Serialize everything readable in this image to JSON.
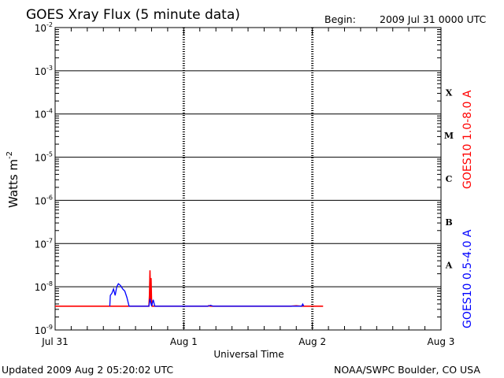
{
  "chart_data": {
    "type": "line",
    "title": "GOES Xray Flux (5 minute data)",
    "begin_label": "Begin:",
    "begin_value": "2009 Jul 31 0000 UTC",
    "xlabel": "Universal Time",
    "ylabel": "Watts m",
    "ylabel_exp": "-2",
    "x_unit": "hours since 2009 Jul 31 0000 UTC",
    "xlim": [
      0,
      72
    ],
    "x_ticks": [
      {
        "label": "Jul 31",
        "value": 0
      },
      {
        "label": "Aug 1",
        "value": 24
      },
      {
        "label": "Aug 2",
        "value": 48
      },
      {
        "label": "Aug 3",
        "value": 72
      }
    ],
    "y_scale": "log",
    "ylim_exp": [
      -9,
      -2
    ],
    "y_ticks": [
      {
        "base": "10",
        "exp": "-2",
        "value": -2
      },
      {
        "base": "10",
        "exp": "-3",
        "value": -3
      },
      {
        "base": "10",
        "exp": "-4",
        "value": -4
      },
      {
        "base": "10",
        "exp": "-5",
        "value": -5
      },
      {
        "base": "10",
        "exp": "-6",
        "value": -6
      },
      {
        "base": "10",
        "exp": "-7",
        "value": -7
      },
      {
        "base": "10",
        "exp": "-8",
        "value": -8
      },
      {
        "base": "10",
        "exp": "-9",
        "value": -9
      }
    ],
    "flare_classes": [
      {
        "label": "X",
        "value": -3.5
      },
      {
        "label": "M",
        "value": -4.5
      },
      {
        "label": "C",
        "value": -5.5
      },
      {
        "label": "B",
        "value": -6.5
      },
      {
        "label": "A",
        "value": -7.5
      }
    ],
    "series": [
      {
        "name": "GOES10 1.0-8.0 A",
        "color": "#ff0000",
        "points": [
          [
            0,
            -8.45
          ],
          [
            17.5,
            -8.45
          ],
          [
            17.6,
            -8.2
          ],
          [
            17.7,
            -7.62
          ],
          [
            17.8,
            -8.3
          ],
          [
            17.9,
            -7.8
          ],
          [
            18.0,
            -8.35
          ],
          [
            18.1,
            -8.45
          ],
          [
            28.5,
            -8.45
          ],
          [
            28.6,
            -8.44
          ],
          [
            29.0,
            -8.45
          ],
          [
            44,
            -8.45
          ],
          [
            45,
            -8.44
          ],
          [
            46,
            -8.45
          ],
          [
            50,
            -8.45
          ]
        ]
      },
      {
        "name": "GOES10 0.5-4.0 A",
        "color": "#0000ff",
        "points": [
          [
            10.2,
            -8.45
          ],
          [
            10.3,
            -8.2
          ],
          [
            10.6,
            -8.15
          ],
          [
            10.9,
            -8.05
          ],
          [
            11.2,
            -8.2
          ],
          [
            11.5,
            -8.0
          ],
          [
            11.8,
            -7.93
          ],
          [
            12.2,
            -7.97
          ],
          [
            12.6,
            -8.05
          ],
          [
            13.0,
            -8.1
          ],
          [
            13.4,
            -8.25
          ],
          [
            13.8,
            -8.45
          ],
          [
            17.5,
            -8.45
          ],
          [
            17.7,
            -8.28
          ],
          [
            18.0,
            -8.45
          ],
          [
            18.3,
            -8.3
          ],
          [
            18.6,
            -8.45
          ],
          [
            28.5,
            -8.45
          ],
          [
            29.0,
            -8.43
          ],
          [
            29.5,
            -8.45
          ],
          [
            46,
            -8.45
          ],
          [
            46.2,
            -8.4
          ],
          [
            46.4,
            -8.45
          ]
        ]
      }
    ]
  },
  "footer": {
    "updated": "Updated 2009 Aug  2 05:20:02 UTC",
    "credit": "NOAA/SWPC Boulder, CO USA"
  }
}
